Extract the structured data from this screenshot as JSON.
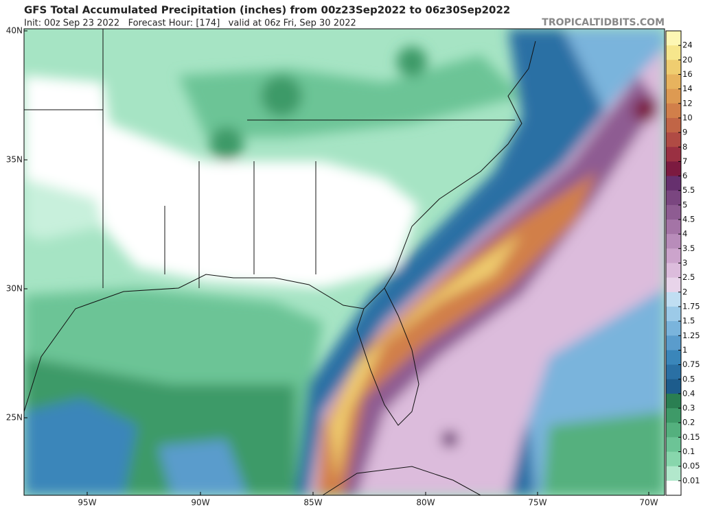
{
  "header": {
    "title": "GFS Total Accumulated Precipitation (inches) from 00z23Sep2022 to 06z30Sep2022",
    "subtitle": "Init: 00z Sep 23 2022   Forecast Hour: [174]   valid at 06z Fri, Sep 30 2022",
    "watermark": "TROPICALTIDBITS.COM"
  },
  "map": {
    "lat_labels": [
      "40N",
      "35N",
      "30N",
      "25N"
    ],
    "lon_labels": [
      "95W",
      "90W",
      "85W",
      "80W",
      "75W",
      "70W"
    ]
  },
  "colorbar": {
    "labels": [
      "24",
      "20",
      "16",
      "14",
      "12",
      "10",
      "9",
      "8",
      "7",
      "6",
      "5.5",
      "5",
      "4.5",
      "4",
      "3.5",
      "3",
      "2.5",
      "2",
      "1.75",
      "1.5",
      "1.25",
      "1",
      "0.75",
      "0.5",
      "0.4",
      "0.3",
      "0.2",
      "0.15",
      "0.1",
      "0.05",
      "0.01"
    ],
    "colors": [
      "#fdf7b4",
      "#f6e68c",
      "#efcd70",
      "#e7b35e",
      "#dd9a52",
      "#d17f4a",
      "#c16546",
      "#b04b44",
      "#9a3042",
      "#7c1a40",
      "#66306e",
      "#7a4680",
      "#8e5c92",
      "#a474a6",
      "#b88cba",
      "#cca4cc",
      "#dcbcdc",
      "#e8d4ea",
      "#c0def2",
      "#9ccae8",
      "#7ab4dc",
      "#5a9ccc",
      "#3a86ba",
      "#2a70a4",
      "#1d5c8c",
      "#2a7f52",
      "#3e9a68",
      "#54b07e",
      "#6cc496",
      "#88d6ac",
      "#b2e8cc",
      "#ffffff"
    ]
  }
}
